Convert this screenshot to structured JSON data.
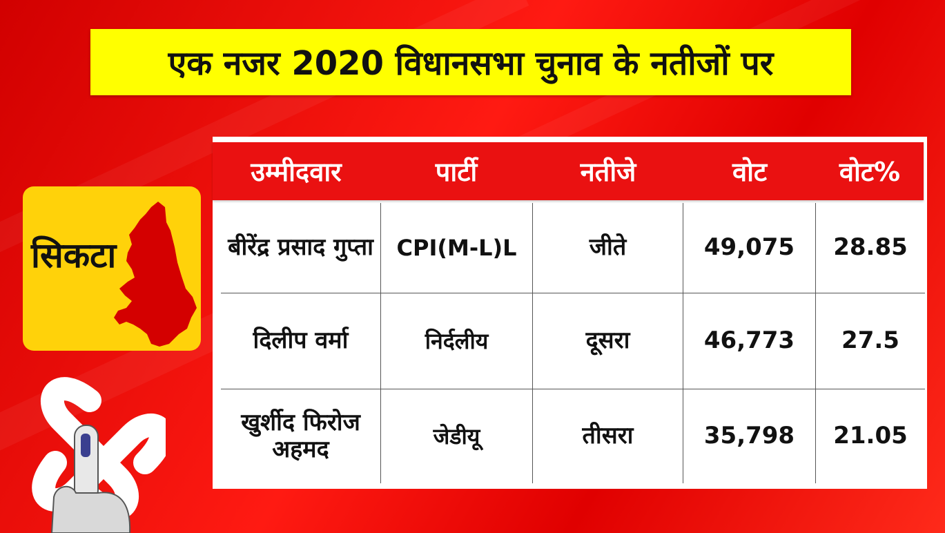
{
  "title": "एक नजर 2020 विधानसभा चुनाव के नतीजों पर",
  "constituency": "सिकटा",
  "table": {
    "headers": [
      "उम्मीदवार",
      "पार्टी",
      "नतीजे",
      "वोट",
      "वोट%"
    ],
    "rows": [
      {
        "candidate": "बीरेंद्र प्रसाद गुप्ता",
        "party": "CPI(M-L)L",
        "result": "जीते",
        "votes": "49,075",
        "vote_pct": "28.85"
      },
      {
        "candidate": "दिलीप वर्मा",
        "party": "निर्दलीय",
        "result": "दूसरा",
        "votes": "46,773",
        "vote_pct": "27.5"
      },
      {
        "candidate": "खुर्शीद फिरोज अहमद",
        "party": "जेडीयू",
        "result": "तीसरा",
        "votes": "35,798",
        "vote_pct": "21.05"
      }
    ]
  },
  "icons": {
    "map": "constituency-map-icon",
    "election": "election-symbol-icon"
  },
  "colors": {
    "background": "#e60000",
    "banner": "#ffff00",
    "card": "#ffd20a",
    "header": "#ea1111",
    "map_fill": "#d40000"
  }
}
